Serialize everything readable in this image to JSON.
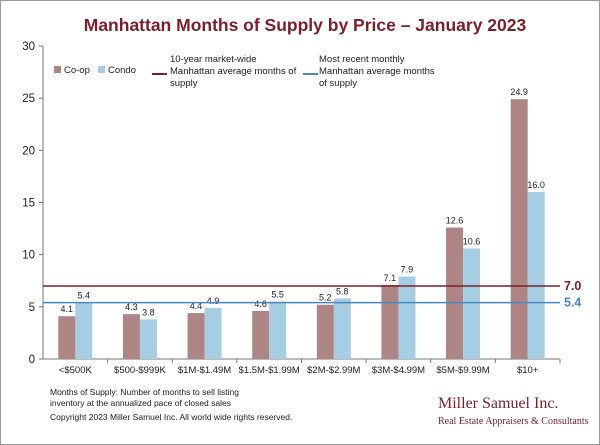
{
  "chart_data": {
    "type": "bar",
    "title": "Manhattan Months of Supply by Price – January 2023",
    "xlabel": "",
    "ylabel": "",
    "ylim": [
      0,
      30
    ],
    "yticks": [
      "0",
      "5",
      "10",
      "15",
      "20",
      "25",
      "30"
    ],
    "categories": [
      "<$500K",
      "$500-$999K",
      "$1M-$1.49M",
      "$1.5M-$1.99M",
      "$2M-$2.99M",
      "$3M-$4.99M",
      "$5M-$9.99M",
      "$10+"
    ],
    "series": [
      {
        "name": "Co-op",
        "color": "#ad8585",
        "values": [
          4.1,
          4.3,
          4.4,
          4.6,
          5.2,
          7.1,
          12.6,
          24.9
        ],
        "labels": [
          "4.1",
          "4.3",
          "4.4",
          "4.6",
          "5.2",
          "7.1",
          "12.6",
          "24.9"
        ]
      },
      {
        "name": "Condo",
        "color": "#a7cde3",
        "values": [
          5.4,
          3.8,
          4.9,
          5.5,
          5.8,
          7.9,
          10.6,
          16.0
        ],
        "labels": [
          "5.4",
          "3.8",
          "4.9",
          "5.5",
          "5.8",
          "7.9",
          "10.6",
          "16.0"
        ]
      }
    ],
    "reference_lines": [
      {
        "name": "10-year market-wide Manhattan average months of supply",
        "legend_lines": [
          "10-year market-wide",
          "Manhattan average months of",
          "supply"
        ],
        "value": 7.0,
        "label": "7.0",
        "color": "#7a1f2b"
      },
      {
        "name": "Most recent monthly Manhattan average months of supply",
        "legend_lines": [
          "Most recent monthly",
          "Manhattan average months",
          "of supply"
        ],
        "value": 5.4,
        "label": "5.4",
        "color": "#4a87c0"
      }
    ],
    "grid": false,
    "legend_position": "top-left"
  },
  "footer": {
    "note_lines": [
      "Months of Supply: Number of months to sell listing",
      "inventory at the annualized pace of closed sales"
    ],
    "copyright": "Copyright 2023 Miller Samuel Inc.  All world wide rights reserved."
  },
  "branding": {
    "name": "Miller Samuel Inc.",
    "tagline": "Real Estate Appraisers & Consultants"
  }
}
